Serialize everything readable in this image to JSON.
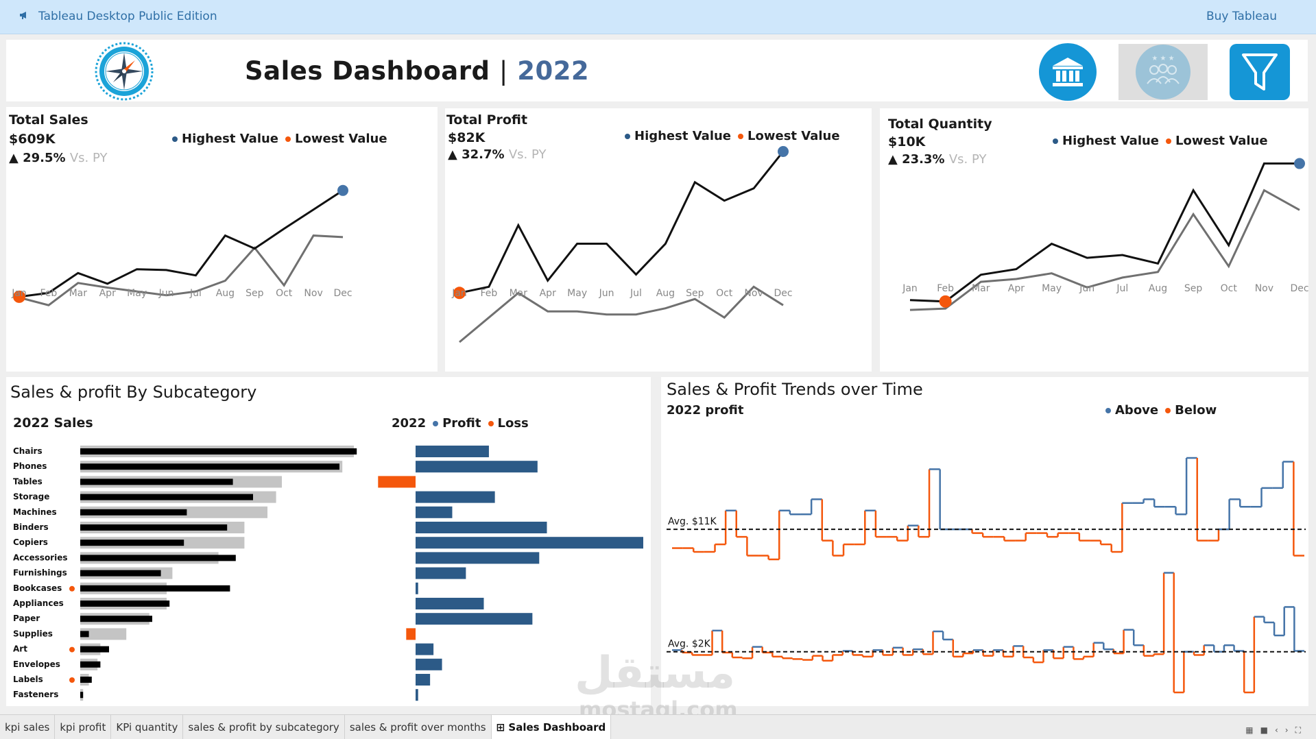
{
  "app": {
    "title": "Tableau Desktop Public Edition",
    "buy_label": "Buy Tableau"
  },
  "header": {
    "title": "Sales  Dashboard",
    "separator": "|",
    "year": "2022",
    "buttons": [
      {
        "name": "bank-icon",
        "color": "#1596d6"
      },
      {
        "name": "customers-icon",
        "color": "#9cc3d8"
      },
      {
        "name": "filter-icon",
        "color": "#1596d6"
      }
    ]
  },
  "colors": {
    "current": "#111111",
    "prior": "#707070",
    "highest": "#4574a8",
    "lowest": "#f4570c",
    "profit_bar": "#2c5a87",
    "loss_bar": "#f4570c",
    "py_bar": "#c4c4c4"
  },
  "months": [
    "Jan",
    "Feb",
    "Mar",
    "Apr",
    "May",
    "Jun",
    "Jul",
    "Aug",
    "Sep",
    "Oct",
    "Nov",
    "Dec"
  ],
  "kpis": [
    {
      "title": "Total Sales",
      "value": "$609K",
      "change_arrow": "▲",
      "change": "29.5%",
      "vs": "Vs. PY",
      "legend_high": "Highest Value",
      "legend_low": "Lowest Value"
    },
    {
      "title": "Total Profit",
      "value": "$82K",
      "change_arrow": "▲",
      "change": "32.7%",
      "vs": "Vs. PY",
      "legend_high": "Highest Value",
      "legend_low": "Lowest Value"
    },
    {
      "title": "Total Quantity",
      "value": "$10K",
      "change_arrow": "▲",
      "change": "23.3%",
      "vs": "Vs. PY",
      "legend_high": "Highest Value",
      "legend_low": "Lowest Value"
    }
  ],
  "subcategory": {
    "title": "Sales & profit By Subcategory",
    "sales_label": "2022  Sales",
    "profit_year": "2022",
    "legend_profit": "Profit",
    "legend_loss": "Loss"
  },
  "trends": {
    "title": "Sales & Profit Trends over Time",
    "sub_label": "2022  profit",
    "legend_above": "Above",
    "legend_below": "Below",
    "avg1_label": "Avg. $11K",
    "avg2_label": "Avg. $2K"
  },
  "chart_data": [
    {
      "type": "line",
      "title": "Total Sales",
      "x": [
        "Jan",
        "Feb",
        "Mar",
        "Apr",
        "May",
        "Jun",
        "Jul",
        "Aug",
        "Sep",
        "Oct",
        "Nov",
        "Dec"
      ],
      "series": [
        {
          "values": [
            44,
            49,
            75,
            61,
            80,
            79,
            72,
            124,
            107,
            133,
            158,
            183
          ]
        },
        {
          "values": [
            43,
            33,
            62,
            56,
            51,
            46,
            51,
            65,
            108,
            59,
            124,
            122
          ]
        }
      ],
      "ylim": [
        0,
        190
      ],
      "highest_index": 11,
      "lowest_index": 0
    },
    {
      "type": "line",
      "title": "Total Profit",
      "x": [
        "Jan",
        "Feb",
        "Mar",
        "Apr",
        "May",
        "Jun",
        "Jul",
        "Aug",
        "Sep",
        "Oct",
        "Nov",
        "Dec"
      ],
      "series": [
        {
          "values": [
            4,
            5,
            15,
            6,
            12,
            12,
            7,
            12,
            22,
            19,
            21,
            27
          ]
        },
        {
          "values": [
            -4,
            0,
            4,
            1,
            1,
            0.5,
            0.5,
            1.5,
            3,
            0,
            5,
            2
          ]
        }
      ],
      "ylim": [
        -5,
        28
      ],
      "highest_index": 11,
      "lowest_index": 0
    },
    {
      "type": "line",
      "title": "Total Quantity",
      "x": [
        "Jan",
        "Feb",
        "Mar",
        "Apr",
        "May",
        "Jun",
        "Jul",
        "Aug",
        "Sep",
        "Oct",
        "Nov",
        "Dec"
      ],
      "series": [
        {
          "values": [
            2.3,
            2.2,
            4.1,
            4.5,
            6.3,
            5.3,
            5.5,
            4.9,
            10.1,
            6.2,
            12.0,
            12.0
          ]
        },
        {
          "values": [
            1.6,
            1.7,
            3.6,
            3.8,
            4.2,
            3.2,
            3.9,
            4.3,
            8.4,
            4.7,
            10.1,
            8.7
          ]
        }
      ],
      "ylim": [
        0,
        13
      ],
      "highest_index": 11,
      "lowest_index": 1
    },
    {
      "type": "bar",
      "title": "2022  Sales",
      "categories": [
        "Chairs",
        "Phones",
        "Tables",
        "Storage",
        "Machines",
        "Binders",
        "Copiers",
        "Accessories",
        "Furnishings",
        "Bookcases",
        "Appliances",
        "Paper",
        "Supplies",
        "Art",
        "Envelopes",
        "Labels",
        "Fasteners"
      ],
      "series": [
        {
          "values": [
            96,
            90,
            53,
            60,
            37,
            51,
            36,
            54,
            28,
            52,
            31,
            25,
            3,
            10,
            7,
            4,
            1
          ]
        },
        {
          "values": [
            95,
            91,
            70,
            68,
            65,
            57,
            57,
            48,
            32,
            30,
            30,
            24,
            16,
            7,
            6,
            3,
            1
          ]
        }
      ],
      "marker_categories": [
        "Bookcases",
        "Art",
        "Labels"
      ],
      "xlim": [
        0,
        100
      ]
    },
    {
      "type": "bar",
      "title": "2022 Profit",
      "categories": [
        "Chairs",
        "Phones",
        "Tables",
        "Storage",
        "Machines",
        "Binders",
        "Copiers",
        "Accessories",
        "Furnishings",
        "Bookcases",
        "Appliances",
        "Paper",
        "Supplies",
        "Art",
        "Envelopes",
        "Labels",
        "Fasteners"
      ],
      "values": [
        8.6,
        14.3,
        -4.4,
        9.3,
        4.3,
        15.4,
        26.7,
        14.5,
        5.9,
        0.3,
        8.0,
        13.7,
        -1.1,
        2.1,
        3.1,
        1.7,
        0.3
      ],
      "xlim": [
        -5,
        27
      ]
    },
    {
      "type": "line",
      "title": "Sales & Profit Trends over Time",
      "step": true,
      "series": [
        {
          "values": [
            6,
            6,
            5,
            5,
            7,
            16,
            9,
            4,
            4,
            3,
            16,
            15,
            15,
            19,
            8,
            4,
            7,
            7,
            16,
            9,
            9,
            8,
            12,
            9,
            27,
            11,
            11,
            11,
            10,
            9,
            9,
            8,
            8,
            10,
            10,
            9,
            10,
            10,
            8,
            8,
            7,
            5,
            18,
            18,
            19,
            17,
            17,
            15,
            30,
            8,
            8,
            11,
            19,
            17,
            17,
            22,
            22,
            29,
            4
          ],
          "average": 11
        },
        {
          "values": [
            2.2,
            1.9,
            1.6,
            1.6,
            4.6,
            1.9,
            1.3,
            1.2,
            2.6,
            1.9,
            1.4,
            1.2,
            1.1,
            1.0,
            1.5,
            0.9,
            1.6,
            2.1,
            1.6,
            1.4,
            2.2,
            1.6,
            2.5,
            1.6,
            2.3,
            1.7,
            4.5,
            3.5,
            1.4,
            1.8,
            2.2,
            1.5,
            2.2,
            1.4,
            2.7,
            1.3,
            0.7,
            2.2,
            1.2,
            2.6,
            1.1,
            1.4,
            3.1,
            2.3,
            1.8,
            4.7,
            2.8,
            1.5,
            1.7,
            11.7,
            -3.0,
            2.0,
            1.6,
            2.8,
            2.0,
            2.8,
            2.1,
            -3.0,
            6.3,
            5.6,
            4.0,
            7.5,
            2.1
          ],
          "average": 2
        }
      ]
    }
  ],
  "tabs": [
    "kpi sales",
    "kpi profit",
    "KPi quantity",
    "sales & profit by subcategory",
    "sales & profit over months",
    "Sales Dashboard"
  ],
  "active_tab": "Sales Dashboard",
  "watermark": {
    "arabic": "مستقل",
    "latin": "mostaql.com"
  }
}
